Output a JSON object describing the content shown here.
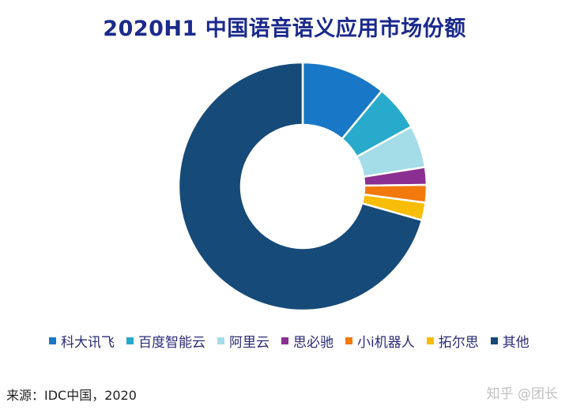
{
  "chart_data": {
    "type": "pie",
    "title": "2020H1 中国语音语义应用市场份额",
    "donut": true,
    "legend_position": "bottom",
    "series": [
      {
        "name": "科大讯飞",
        "value": 11,
        "color": "#1877c6"
      },
      {
        "name": "百度智能云",
        "value": 6,
        "color": "#27aacb"
      },
      {
        "name": "阿里云",
        "value": 5.5,
        "color": "#a4dce8"
      },
      {
        "name": "思必驰",
        "value": 2.3,
        "color": "#8b2f92"
      },
      {
        "name": "小i机器人",
        "value": 2.3,
        "color": "#f2790c"
      },
      {
        "name": "拓尔思",
        "value": 2.3,
        "color": "#f8bd08"
      },
      {
        "name": "其他",
        "value": 70.6,
        "color": "#164a78"
      }
    ]
  },
  "source": "来源：IDC中国，2020",
  "watermark": "知乎 @团长"
}
